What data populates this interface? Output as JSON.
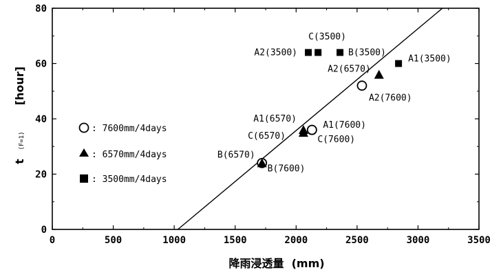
{
  "chart_data": {
    "type": "scatter",
    "xlabel": "降雨浸透量  (mm)",
    "ylabel": "t",
    "ylabel_sub": "(F=1)",
    "ylabel_unit": "[hour]",
    "xlim": [
      0,
      3500
    ],
    "ylim": [
      0,
      80
    ],
    "x_ticks": [
      "0",
      "500",
      "1000",
      "1500",
      "2000",
      "2500",
      "3000",
      "3500"
    ],
    "y_ticks": [
      "0",
      "20",
      "40",
      "60",
      "80"
    ],
    "grid": false,
    "legend_position": "left",
    "series": [
      {
        "name": ": 7600mm/4days",
        "marker": "circle",
        "points": [
          {
            "label": "B(7600)",
            "x": 1720,
            "y": 24
          },
          {
            "label": "C(7600)",
            "x": 2130,
            "y": 36
          },
          {
            "label": "A1(7600)",
            "x": 2130,
            "y": 36
          },
          {
            "label": "A2(7600)",
            "x": 2540,
            "y": 52
          }
        ]
      },
      {
        "name": ": 6570mm/4days",
        "marker": "triangle",
        "points": [
          {
            "label": "B(6570)",
            "x": 1720,
            "y": 24
          },
          {
            "label": "C(6570)",
            "x": 2060,
            "y": 35
          },
          {
            "label": "A1(6570)",
            "x": 2060,
            "y": 36
          },
          {
            "label": "A2(6570)",
            "x": 2680,
            "y": 56
          }
        ]
      },
      {
        "name": ": 3500mm/4days",
        "marker": "square",
        "points": [
          {
            "label": "A2(3500)",
            "x": 2100,
            "y": 64
          },
          {
            "label": "C(3500)",
            "x": 2180,
            "y": 64
          },
          {
            "label": "B(3500)",
            "x": 2360,
            "y": 64
          },
          {
            "label": "A1(3500)",
            "x": 2840,
            "y": 60
          }
        ]
      }
    ],
    "fit_line": {
      "x": [
        1030,
        3200
      ],
      "y": [
        0,
        80
      ]
    }
  }
}
